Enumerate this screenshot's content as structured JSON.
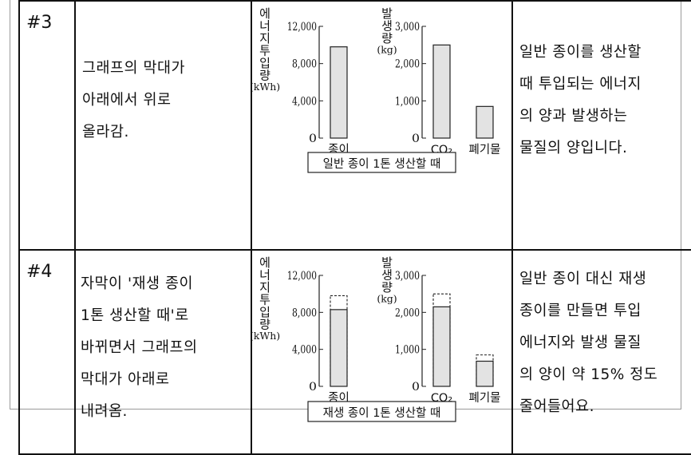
{
  "rows": [
    {
      "number": "#3",
      "description": [
        "그래프의 막대가",
        "아래에서 위로",
        "올라감."
      ],
      "narration": [
        "일반 종이를 생산할",
        "때 투입되는 에너지",
        "의 양과 발생하는",
        "물질의 양입니다."
      ]
    },
    {
      "number": "#4",
      "description": [
        "자막이 '재생 종이",
        "1톤 생산할 때'로",
        "바뀌면서 그래프의",
        "막대가 아래로",
        "내려옴."
      ],
      "narration": [
        "일반 종이 대신 재생",
        "종이를 만들면 투입",
        "에너지와 발생 물질",
        "의 양이 약 15% 정도",
        "줄어들어요."
      ]
    }
  ],
  "chart_data": [
    {
      "type": "bar",
      "title": "일반 종이 1톤 생산할 때",
      "panels": [
        {
          "ylabel": "에너지투입량",
          "yunit": "(kWh)",
          "ylim": [
            0,
            12000
          ],
          "yticks": [
            "0",
            "4,000",
            "8,000",
            "12,000"
          ],
          "categories": [
            "종이"
          ],
          "values": [
            9800
          ]
        },
        {
          "ylabel": "발생량",
          "yunit": "(kg)",
          "ylim": [
            0,
            3000
          ],
          "yticks": [
            "0",
            "1,000",
            "2,000",
            "3,000"
          ],
          "categories": [
            "CO₂",
            "폐기물"
          ],
          "values": [
            2500,
            850
          ]
        }
      ]
    },
    {
      "type": "bar",
      "title": "재생 종이 1톤 생산할 때",
      "panels": [
        {
          "ylabel": "에너지투입량",
          "yunit": "(kWh)",
          "ylim": [
            0,
            12000
          ],
          "yticks": [
            "0",
            "4,000",
            "8,000",
            "12,000"
          ],
          "categories": [
            "종이"
          ],
          "values": [
            8300
          ],
          "previous_values": [
            9800
          ]
        },
        {
          "ylabel": "발생량",
          "yunit": "(kg)",
          "ylim": [
            0,
            3000
          ],
          "yticks": [
            "0",
            "1,000",
            "2,000",
            "3,000"
          ],
          "categories": [
            "CO₂",
            "폐기물"
          ],
          "values": [
            2150,
            680
          ],
          "previous_values": [
            2500,
            850
          ]
        }
      ]
    }
  ]
}
